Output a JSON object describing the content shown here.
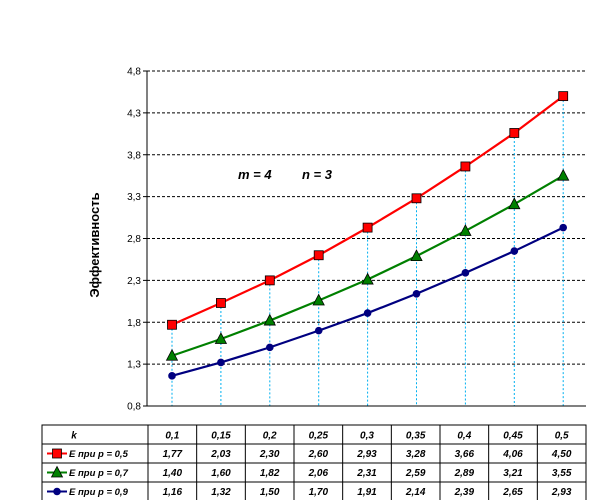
{
  "chart_data": {
    "type": "line",
    "ylabel": "Эффективность",
    "ylim": [
      0.8,
      4.8
    ],
    "yticks": [
      "0,8",
      "1,3",
      "1,8",
      "2,3",
      "2,8",
      "3,3",
      "3,8",
      "4,3",
      "4,8"
    ],
    "grid": true,
    "annotation_m": "m = 4",
    "annotation_n": "n = 3",
    "x_header": "k",
    "x": [
      0.1,
      0.15,
      0.2,
      0.25,
      0.3,
      0.35,
      0.4,
      0.45,
      0.5
    ],
    "x_labels": [
      "0,1",
      "0,15",
      "0,2",
      "0,25",
      "0,3",
      "0,35",
      "0,4",
      "0,45",
      "0,5"
    ],
    "series": [
      {
        "name": "E при p = 0,5",
        "color": "#ff0000",
        "marker": "square",
        "values": [
          1.77,
          2.03,
          2.3,
          2.6,
          2.93,
          3.28,
          3.66,
          4.06,
          4.5
        ],
        "labels": [
          "1,77",
          "2,03",
          "2,30",
          "2,60",
          "2,93",
          "3,28",
          "3,66",
          "4,06",
          "4,50"
        ]
      },
      {
        "name": "E при p = 0,7",
        "color": "#008000",
        "marker": "triangle",
        "values": [
          1.4,
          1.6,
          1.82,
          2.06,
          2.31,
          2.59,
          2.89,
          3.21,
          3.55
        ],
        "labels": [
          "1,40",
          "1,60",
          "1,82",
          "2,06",
          "2,31",
          "2,59",
          "2,89",
          "3,21",
          "3,55"
        ]
      },
      {
        "name": "E при p = 0,9",
        "color": "#000080",
        "marker": "circle",
        "values": [
          1.16,
          1.32,
          1.5,
          1.7,
          1.91,
          2.14,
          2.39,
          2.65,
          2.93
        ],
        "labels": [
          "1,16",
          "1,32",
          "1,50",
          "1,70",
          "1,91",
          "2,14",
          "2,39",
          "2,65",
          "2,93"
        ]
      }
    ]
  }
}
